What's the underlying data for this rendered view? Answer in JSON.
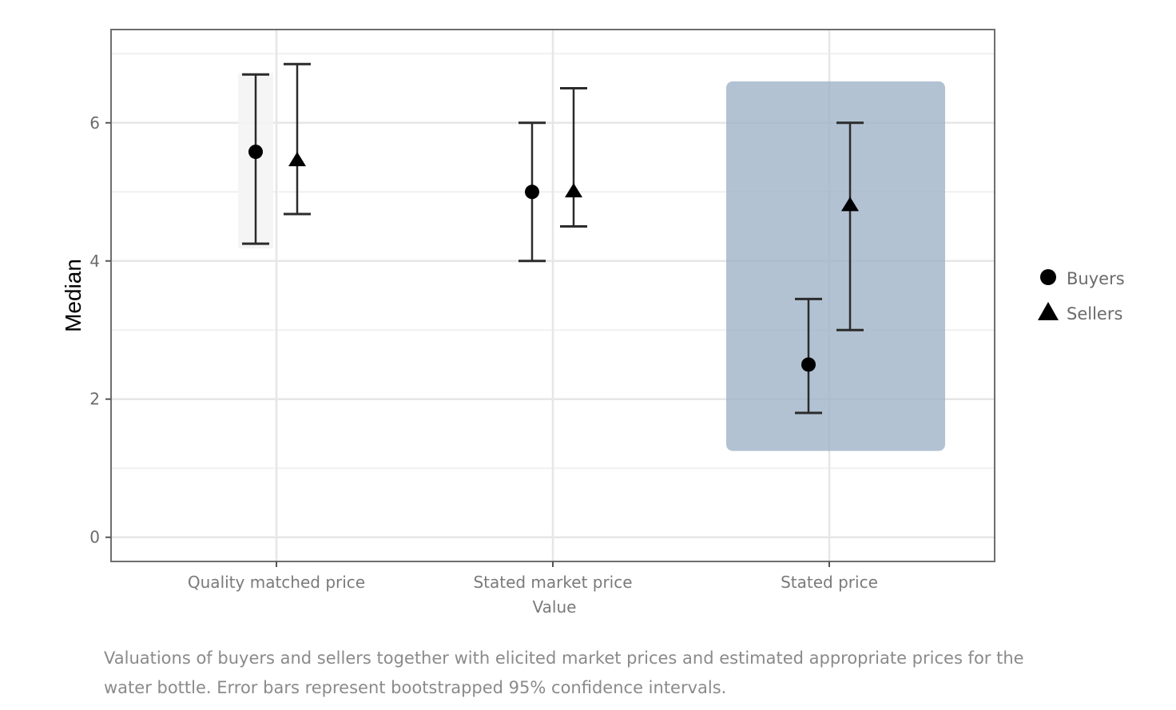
{
  "chart_data": {
    "type": "scatter",
    "title": "",
    "xlabel": "Value",
    "ylabel": "Median",
    "categories": [
      "Quality matched price",
      "Stated market price",
      "Stated price"
    ],
    "ylim": [
      -0.35,
      7.35
    ],
    "yticks": [
      0,
      2,
      4,
      6
    ],
    "grid": true,
    "legend": "right",
    "series": [
      {
        "name": "Buyers",
        "marker": "circle",
        "values": [
          5.58,
          5.0,
          2.5
        ],
        "ci_low": [
          4.25,
          4.0,
          1.8
        ],
        "ci_high": [
          6.7,
          6.0,
          3.45
        ]
      },
      {
        "name": "Sellers",
        "marker": "triangle",
        "values": [
          5.45,
          5.0,
          4.8
        ],
        "ci_low": [
          4.68,
          4.5,
          3.0
        ],
        "ci_high": [
          6.85,
          6.5,
          6.0
        ]
      }
    ],
    "highlight": {
      "category": "Stated price",
      "color": "#9fb3c8"
    },
    "colors": {
      "marker": "#000000",
      "errorbar": "#2b2b2b",
      "grid": "#e6e6e6",
      "panel_border": "#6e6e6e"
    }
  },
  "caption": "Valuations of buyers and sellers together with elicited market prices and estimated appropriate prices for the water bottle. Error bars represent bootstrapped 95% confidence intervals."
}
